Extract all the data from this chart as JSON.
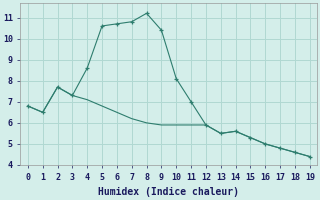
{
  "line1_x": [
    0,
    1,
    2,
    3,
    4,
    5,
    6,
    7,
    8,
    9,
    10,
    11,
    12,
    13,
    14,
    15,
    16,
    17,
    18,
    19
  ],
  "line1_y": [
    6.8,
    6.5,
    7.7,
    7.3,
    8.6,
    10.6,
    10.7,
    10.8,
    11.2,
    10.4,
    8.1,
    7.0,
    5.9,
    5.5,
    5.6,
    5.3,
    5.0,
    4.8,
    4.6,
    4.4
  ],
  "line2_x": [
    0,
    1,
    2,
    3,
    4,
    5,
    6,
    7,
    8,
    9,
    10,
    11,
    12,
    13,
    14,
    15,
    16,
    17,
    18,
    19
  ],
  "line2_y": [
    6.8,
    6.5,
    7.7,
    7.3,
    7.1,
    6.8,
    6.5,
    6.2,
    6.0,
    5.9,
    5.9,
    5.9,
    5.9,
    5.5,
    5.6,
    5.3,
    5.0,
    4.8,
    4.6,
    4.4
  ],
  "line_color": "#2e7d6e",
  "bg_color": "#d4eeea",
  "grid_color": "#b0d8d2",
  "xlabel": "Humidex (Indice chaleur)",
  "xlim": [
    -0.5,
    19.5
  ],
  "ylim": [
    4,
    11.7
  ],
  "yticks": [
    4,
    5,
    6,
    7,
    8,
    9,
    10,
    11
  ],
  "xticks": [
    0,
    1,
    2,
    3,
    4,
    5,
    6,
    7,
    8,
    9,
    10,
    11,
    12,
    13,
    14,
    15,
    16,
    17,
    18,
    19
  ],
  "tick_fontsize": 6,
  "xlabel_fontsize": 7
}
